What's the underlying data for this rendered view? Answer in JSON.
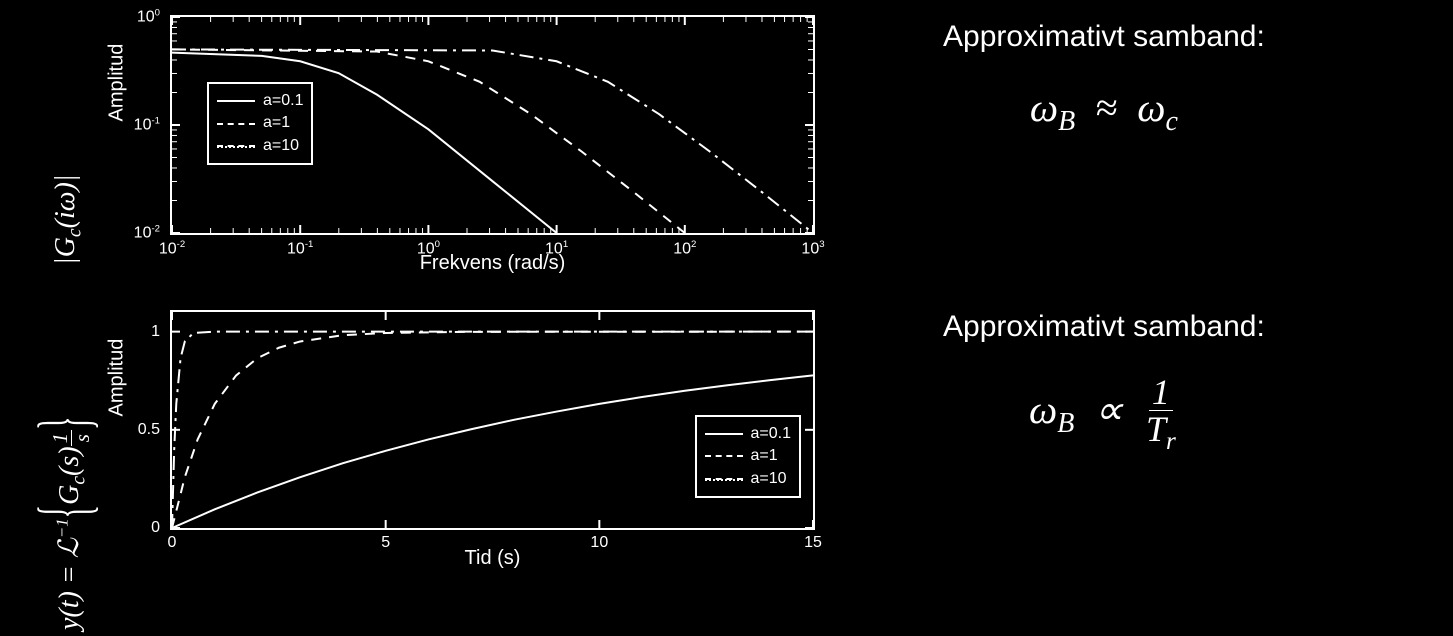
{
  "background_color": "#000000",
  "line_color": "#ffffff",
  "text_color": "#ffffff",
  "left_formula_upper": "|G_c(iω)|",
  "left_formula_lower": "y(t) = ℒ⁻¹ { G_c(s) · 1/s }",
  "legend_labels": [
    "a=0.1",
    "a=1",
    "a=10"
  ],
  "legend_styles": [
    "solid",
    "dashed",
    "dash-dot"
  ],
  "chart_top": {
    "type": "line-loglog",
    "ylabel": "Amplitud",
    "xlabel": "Frekvens (rad/s)",
    "label_fontsize": 20,
    "tick_fontsize": 16,
    "xlim_log10": [
      -2,
      3
    ],
    "ylim_log10": [
      -2,
      0
    ],
    "xticks_exp": [
      -2,
      -1,
      0,
      1,
      2,
      3
    ],
    "yticks_exp": [
      -2,
      -1,
      0
    ],
    "legend_pos": "upper-left",
    "series": [
      {
        "label": "a=0.1",
        "style": "solid",
        "a": 0.1,
        "points_log": [
          [
            -2,
            -0.33
          ],
          [
            -1.3,
            -0.36
          ],
          [
            -1,
            -0.41
          ],
          [
            -0.7,
            -0.52
          ],
          [
            -0.4,
            -0.72
          ],
          [
            0,
            -1.04
          ],
          [
            0.5,
            -1.52
          ],
          [
            1,
            -2.0
          ]
        ]
      },
      {
        "label": "a=1",
        "style": "dashed",
        "a": 1,
        "points_log": [
          [
            -2,
            -0.3
          ],
          [
            -0.4,
            -0.32
          ],
          [
            0,
            -0.41
          ],
          [
            0.4,
            -0.6
          ],
          [
            0.8,
            -0.9
          ],
          [
            1.2,
            -1.25
          ],
          [
            1.6,
            -1.62
          ],
          [
            2,
            -2.0
          ]
        ]
      },
      {
        "label": "a=10",
        "style": "dash-dot",
        "a": 10,
        "points_log": [
          [
            -2,
            -0.3
          ],
          [
            0.5,
            -0.31
          ],
          [
            1,
            -0.41
          ],
          [
            1.4,
            -0.6
          ],
          [
            1.8,
            -0.9
          ],
          [
            2.2,
            -1.25
          ],
          [
            2.6,
            -1.62
          ],
          [
            3,
            -2.0
          ]
        ]
      }
    ]
  },
  "chart_bottom": {
    "type": "line-linear",
    "ylabel": "Amplitud",
    "xlabel": "Tid (s)",
    "label_fontsize": 20,
    "tick_fontsize": 16,
    "xlim": [
      0,
      15
    ],
    "ylim": [
      0,
      1.1
    ],
    "xticks": [
      0,
      5,
      10,
      15
    ],
    "yticks": [
      0,
      0.5,
      1
    ],
    "legend_pos": "lower-right",
    "series": [
      {
        "label": "a=0.1",
        "style": "solid",
        "a": 0.1,
        "points": [
          [
            0,
            0
          ],
          [
            1,
            0.095
          ],
          [
            2,
            0.181
          ],
          [
            3,
            0.259
          ],
          [
            4,
            0.33
          ],
          [
            5,
            0.393
          ],
          [
            6,
            0.451
          ],
          [
            7,
            0.503
          ],
          [
            8,
            0.551
          ],
          [
            9,
            0.593
          ],
          [
            10,
            0.632
          ],
          [
            11,
            0.667
          ],
          [
            12,
            0.699
          ],
          [
            13,
            0.727
          ],
          [
            14,
            0.753
          ],
          [
            15,
            0.777
          ]
        ]
      },
      {
        "label": "a=1",
        "style": "dashed",
        "a": 1,
        "points": [
          [
            0,
            0
          ],
          [
            0.3,
            0.259
          ],
          [
            0.6,
            0.451
          ],
          [
            1,
            0.632
          ],
          [
            1.5,
            0.777
          ],
          [
            2,
            0.865
          ],
          [
            2.5,
            0.918
          ],
          [
            3,
            0.95
          ],
          [
            4,
            0.982
          ],
          [
            5,
            0.993
          ],
          [
            7,
            0.999
          ],
          [
            15,
            1.0
          ]
        ]
      },
      {
        "label": "a=10",
        "style": "dash-dot",
        "a": 10,
        "points": [
          [
            0,
            0
          ],
          [
            0.05,
            0.393
          ],
          [
            0.1,
            0.632
          ],
          [
            0.2,
            0.865
          ],
          [
            0.3,
            0.95
          ],
          [
            0.5,
            0.993
          ],
          [
            1,
            1.0
          ],
          [
            15,
            1.0
          ]
        ]
      }
    ]
  },
  "right": {
    "title": "Approximativt samband:",
    "formula_top": "ω_B ≈ ω_c",
    "formula_bottom": "ω_B ∝ 1 / T_r"
  }
}
